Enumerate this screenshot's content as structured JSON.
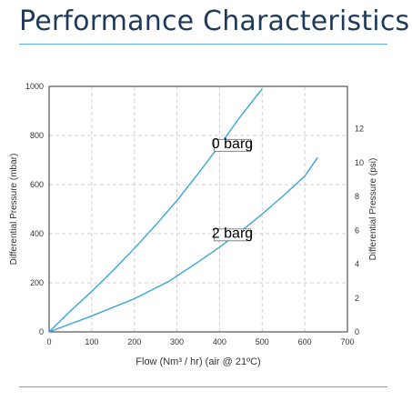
{
  "header": {
    "title": "Performance Characteristics"
  },
  "colors": {
    "title": "#1f3a5a",
    "rule": "#5aaed6",
    "curve": "#3aa6d6",
    "grid": "#d0d0d0"
  },
  "chart_data": {
    "type": "line",
    "title": "",
    "xlabel": "Flow (Nm³ / hr) (air @ 21ºC)",
    "ylabel": "Differential Pressure (mbar)",
    "y2label": "Differential Pressure (psi)",
    "xlim": [
      0,
      700
    ],
    "ylim": [
      0,
      1000
    ],
    "y2lim": [
      0,
      14.5
    ],
    "x_ticks": [
      0,
      100,
      200,
      300,
      400,
      500,
      600,
      700
    ],
    "y_ticks": [
      0,
      200,
      400,
      600,
      800,
      1000
    ],
    "y2_ticks": [
      0,
      2,
      4,
      6,
      8,
      10,
      12
    ],
    "grid": true,
    "series": [
      {
        "name": "0 barg",
        "x": [
          0,
          50,
          100,
          150,
          200,
          250,
          300,
          350,
          400,
          450,
          500
        ],
        "y": [
          0,
          85,
          165,
          250,
          340,
          435,
          535,
          645,
          760,
          880,
          990
        ]
      },
      {
        "name": "2 barg",
        "x": [
          0,
          100,
          200,
          280,
          350,
          400,
          450,
          500,
          550,
          600,
          630
        ],
        "y": [
          0,
          65,
          135,
          205,
          285,
          345,
          410,
          480,
          555,
          635,
          710
        ]
      }
    ],
    "annotations": [
      {
        "text": "0 barg",
        "series": 0,
        "x": 430,
        "y": 760
      },
      {
        "text": "2 barg",
        "series": 1,
        "x": 430,
        "y": 395
      }
    ]
  }
}
